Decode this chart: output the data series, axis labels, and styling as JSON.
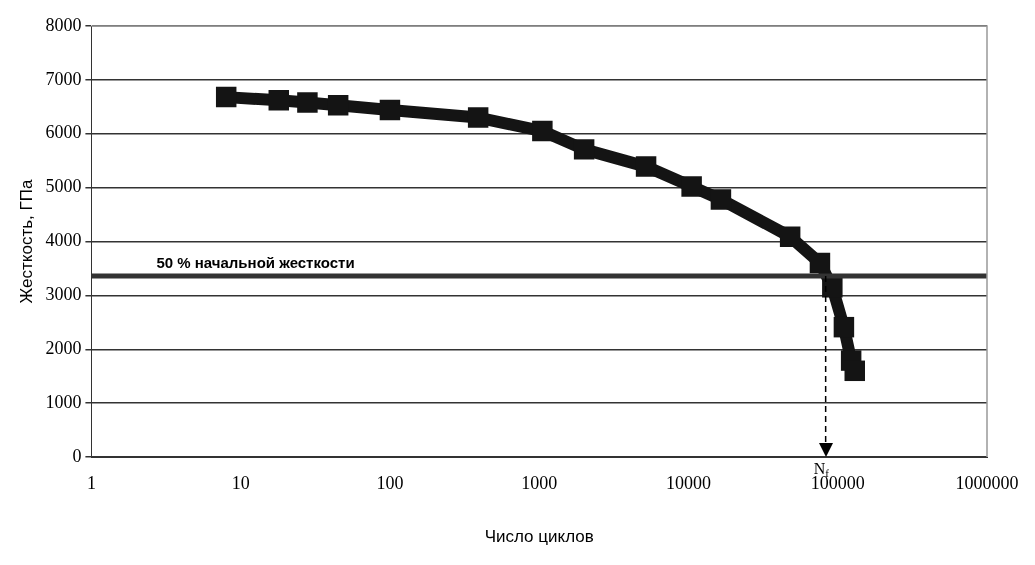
{
  "chart_data": {
    "type": "line",
    "xlabel": "Число циклов",
    "ylabel": "Жесткость, ГПа",
    "log": "x",
    "grid": "y",
    "legend": false,
    "marker": "square",
    "line_style": "solid",
    "xlim": [
      1,
      1000000
    ],
    "xticks": [
      1,
      10,
      100,
      1000,
      10000,
      100000,
      1000000
    ],
    "ylim": [
      0,
      8000
    ],
    "yticks": [
      0,
      1000,
      2000,
      3000,
      4000,
      5000,
      6000,
      7000,
      8000
    ],
    "series": [
      {
        "color": "#141414",
        "x": [
          8,
          18,
          28,
          45,
          100,
          390,
          1050,
          2000,
          5200,
          10500,
          16500,
          48000,
          76000,
          92000,
          110000,
          123000,
          130000
        ],
        "values": [
          6680,
          6620,
          6580,
          6530,
          6440,
          6300,
          6050,
          5710,
          5390,
          5020,
          4780,
          4090,
          3600,
          3150,
          2410,
          1790,
          1600
        ]
      }
    ],
    "ref_lines": [
      {
        "axis": "y",
        "value": 3360,
        "label": "50 % начальной жесткости",
        "color": "#333333",
        "line_style": "solid"
      },
      {
        "axis": "x",
        "value": 83000,
        "label": "N$_{f}$",
        "color": "#000000",
        "line_style": "dashed"
      }
    ]
  }
}
